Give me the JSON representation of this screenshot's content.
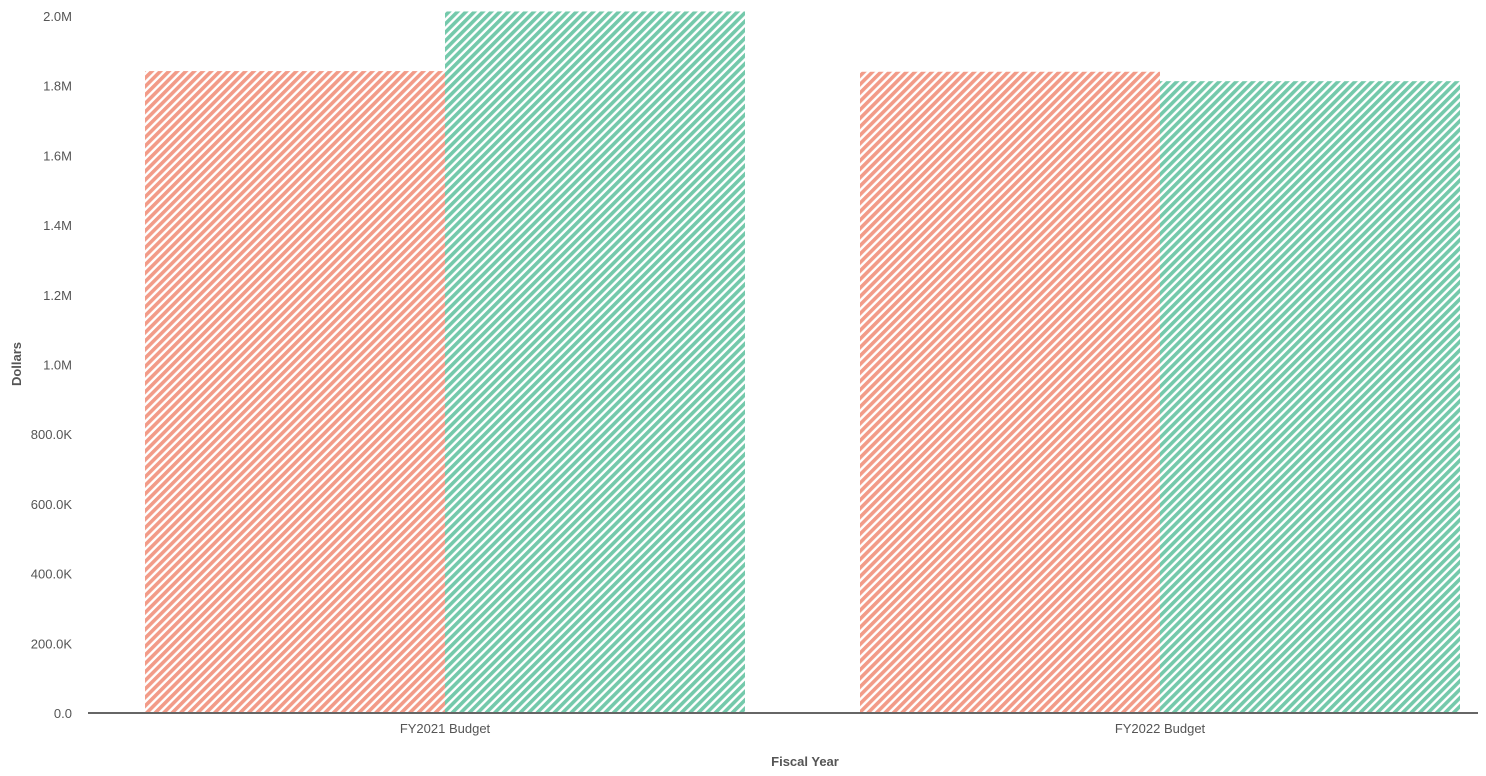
{
  "chart_data": {
    "type": "bar",
    "title": "",
    "xlabel": "Fiscal Year",
    "ylabel": "Dollars",
    "categories": [
      "FY2021 Budget",
      "FY2022 Budget"
    ],
    "series": [
      {
        "values": [
          1842000,
          1840000
        ],
        "color": "#f29b88"
      },
      {
        "values": [
          2013000,
          1813000
        ],
        "color": "#74c9ab"
      }
    ],
    "ylim": [
      0,
      2000000
    ],
    "y_ticks": [
      {
        "value": 0,
        "label": "0.0"
      },
      {
        "value": 200000,
        "label": "200.0K"
      },
      {
        "value": 400000,
        "label": "400.0K"
      },
      {
        "value": 600000,
        "label": "600.0K"
      },
      {
        "value": 800000,
        "label": "800.0K"
      },
      {
        "value": 1000000,
        "label": "1.0M"
      },
      {
        "value": 1200000,
        "label": "1.2M"
      },
      {
        "value": 1400000,
        "label": "1.4M"
      },
      {
        "value": 1600000,
        "label": "1.6M"
      },
      {
        "value": 1800000,
        "label": "1.8M"
      },
      {
        "value": 2000000,
        "label": "2.0M"
      }
    ],
    "grid": false,
    "legend": "none",
    "bar_fill_style": "diagonal-stripes"
  }
}
